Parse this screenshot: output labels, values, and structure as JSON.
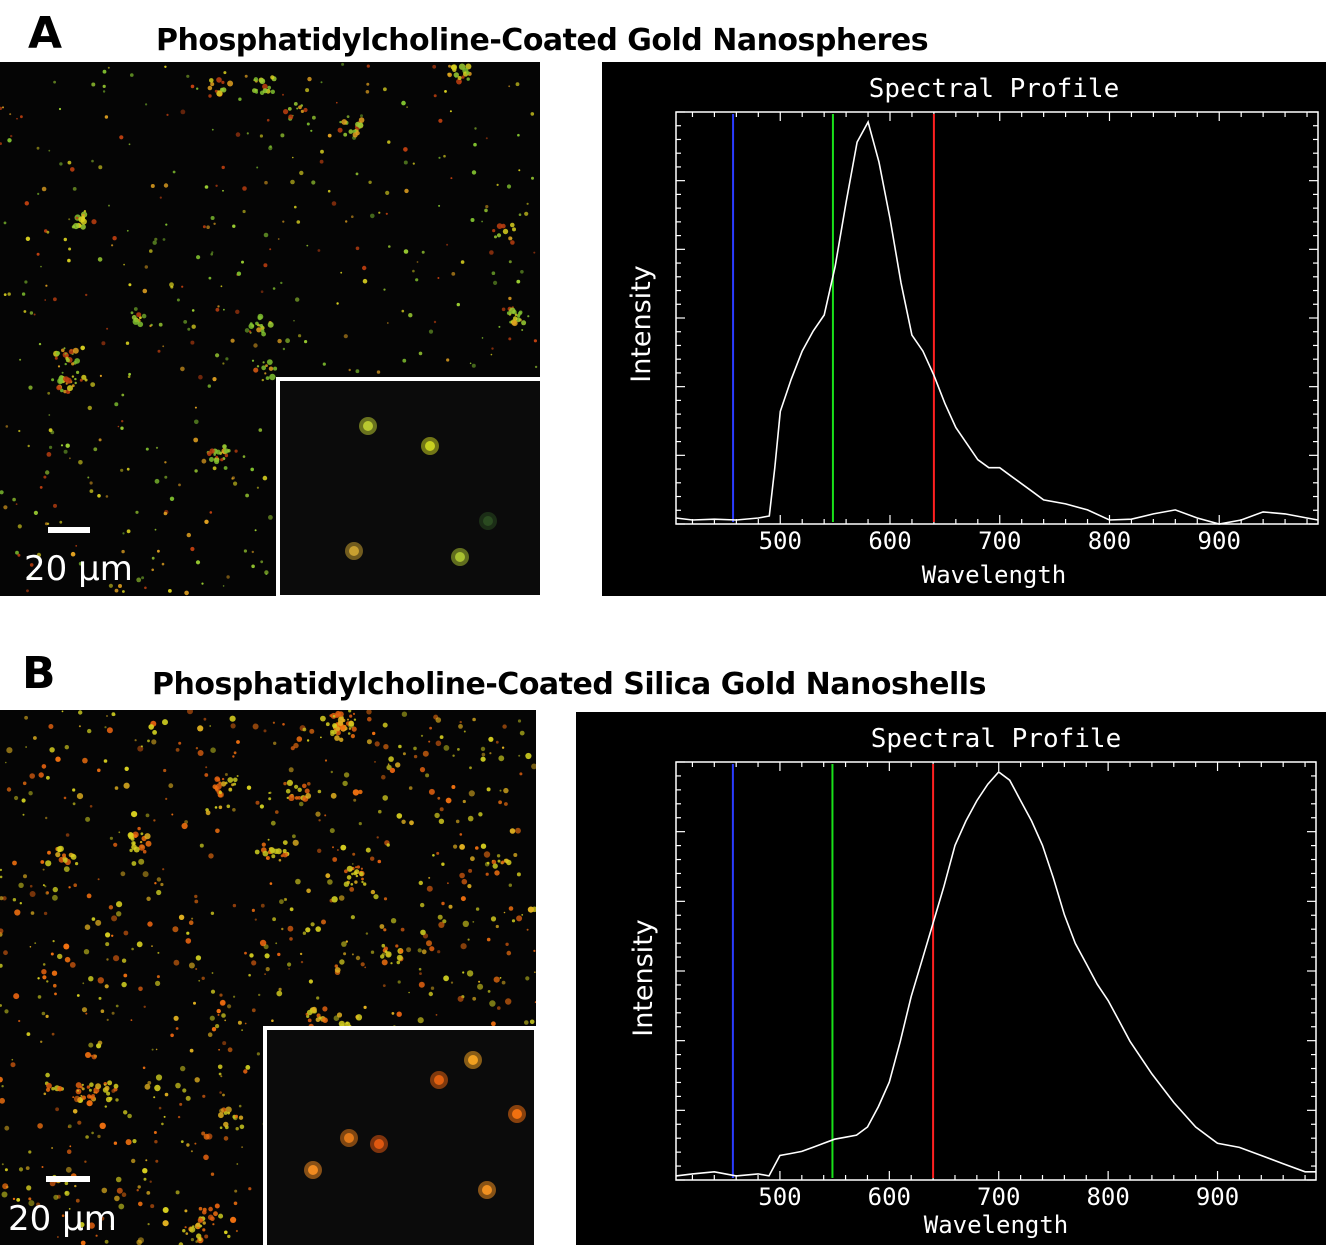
{
  "panels": [
    {
      "letter": "A",
      "title": "Phosphatidylcholine-Coated Gold Nanospheres",
      "image": {
        "scale_label": "20 µm",
        "density": 0.35,
        "palette": [
          "#d8d020",
          "#9acd32",
          "#e0a020",
          "#c04010",
          "#7fbf2f"
        ]
      },
      "chart_data": {
        "type": "line",
        "title": "Spectral Profile",
        "xlabel": "Wavelength",
        "ylabel": "Intensity",
        "xlim": [
          405,
          990
        ],
        "ylim": [
          0,
          1
        ],
        "xticks": [
          500,
          600,
          700,
          800,
          900
        ],
        "markers": [
          {
            "x": 457,
            "color": "#2a3bff"
          },
          {
            "x": 548,
            "color": "#19e019"
          },
          {
            "x": 640,
            "color": "#ff2020"
          }
        ],
        "series": [
          {
            "color": "#ffffff",
            "x": [
              405,
              420,
              440,
              460,
              480,
              490,
              495,
              500,
              510,
              520,
              530,
              540,
              550,
              560,
              570,
              580,
              590,
              600,
              610,
              620,
              630,
              640,
              650,
              660,
              670,
              680,
              690,
              700,
              710,
              720,
              730,
              740,
              760,
              780,
              800,
              820,
              840,
              860,
              880,
              900,
              920,
              940,
              960,
              980,
              990
            ],
            "y": [
              0.015,
              0.01,
              0.012,
              0.01,
              0.015,
              0.02,
              0.14,
              0.28,
              0.36,
              0.43,
              0.48,
              0.52,
              0.64,
              0.8,
              0.95,
              1.0,
              0.9,
              0.76,
              0.6,
              0.47,
              0.43,
              0.37,
              0.3,
              0.24,
              0.2,
              0.16,
              0.14,
              0.14,
              0.12,
              0.1,
              0.08,
              0.06,
              0.05,
              0.035,
              0.01,
              0.012,
              0.025,
              0.035,
              0.015,
              0.0,
              0.01,
              0.03,
              0.025,
              0.015,
              0.01
            ]
          }
        ]
      }
    },
    {
      "letter": "B",
      "title": "Phosphatidylcholine-Coated Silica Gold Nanoshells",
      "image": {
        "scale_label": "20 µm",
        "density": 1.0,
        "palette": [
          "#e0b020",
          "#e06010",
          "#d8d020",
          "#f07010",
          "#c8c820"
        ]
      },
      "chart_data": {
        "type": "line",
        "title": "Spectral Profile",
        "xlabel": "Wavelength",
        "ylabel": "Intensity",
        "xlim": [
          405,
          990
        ],
        "ylim": [
          0,
          1
        ],
        "xticks": [
          500,
          600,
          700,
          800,
          900
        ],
        "markers": [
          {
            "x": 457,
            "color": "#2a3bff"
          },
          {
            "x": 548,
            "color": "#19e019"
          },
          {
            "x": 640,
            "color": "#ff2020"
          }
        ],
        "series": [
          {
            "color": "#ffffff",
            "x": [
              405,
              420,
              440,
              460,
              480,
              490,
              500,
              510,
              520,
              530,
              540,
              550,
              560,
              570,
              580,
              590,
              600,
              610,
              620,
              630,
              640,
              650,
              660,
              670,
              680,
              690,
              700,
              710,
              720,
              730,
              740,
              750,
              760,
              770,
              780,
              790,
              800,
              810,
              820,
              840,
              860,
              880,
              900,
              920,
              940,
              960,
              980,
              990
            ],
            "y": [
              0.01,
              0.015,
              0.02,
              0.01,
              0.015,
              0.01,
              0.06,
              0.065,
              0.07,
              0.08,
              0.09,
              0.1,
              0.105,
              0.11,
              0.13,
              0.18,
              0.24,
              0.34,
              0.45,
              0.54,
              0.63,
              0.72,
              0.82,
              0.88,
              0.93,
              0.97,
              1.0,
              0.98,
              0.93,
              0.88,
              0.82,
              0.74,
              0.65,
              0.58,
              0.53,
              0.48,
              0.44,
              0.39,
              0.34,
              0.26,
              0.19,
              0.13,
              0.09,
              0.08,
              0.06,
              0.04,
              0.02,
              0.02
            ]
          }
        ]
      }
    }
  ]
}
